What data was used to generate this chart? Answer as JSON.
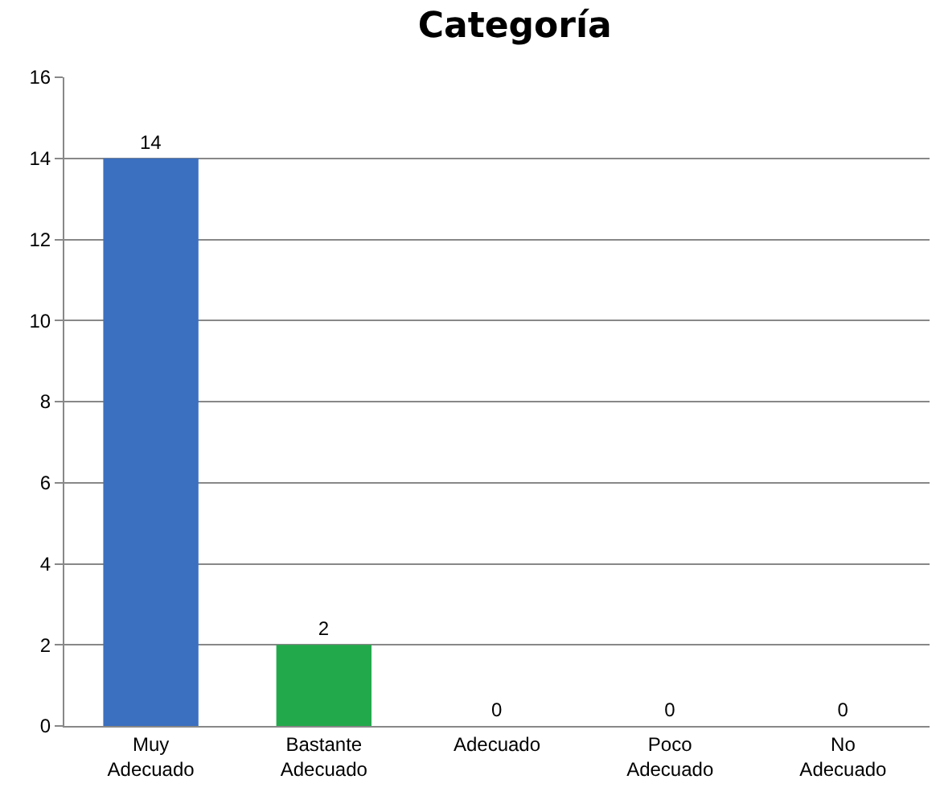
{
  "chart_data": {
    "type": "bar",
    "title": "Categoría",
    "categories": [
      "Muy Adecuado",
      "Bastante Adecuado",
      "Adecuado",
      "Poco Adecuado",
      "No Adecuado"
    ],
    "values": [
      14,
      2,
      0,
      0,
      0
    ],
    "colors": [
      "#3b6fc0",
      "#22a94c",
      "#3b6fc0",
      "#3b6fc0",
      "#3b6fc0"
    ],
    "ylim": [
      0,
      16
    ],
    "yticks": [
      0,
      2,
      4,
      6,
      8,
      10,
      12,
      14,
      16
    ],
    "grid": "y",
    "data_labels": true
  }
}
